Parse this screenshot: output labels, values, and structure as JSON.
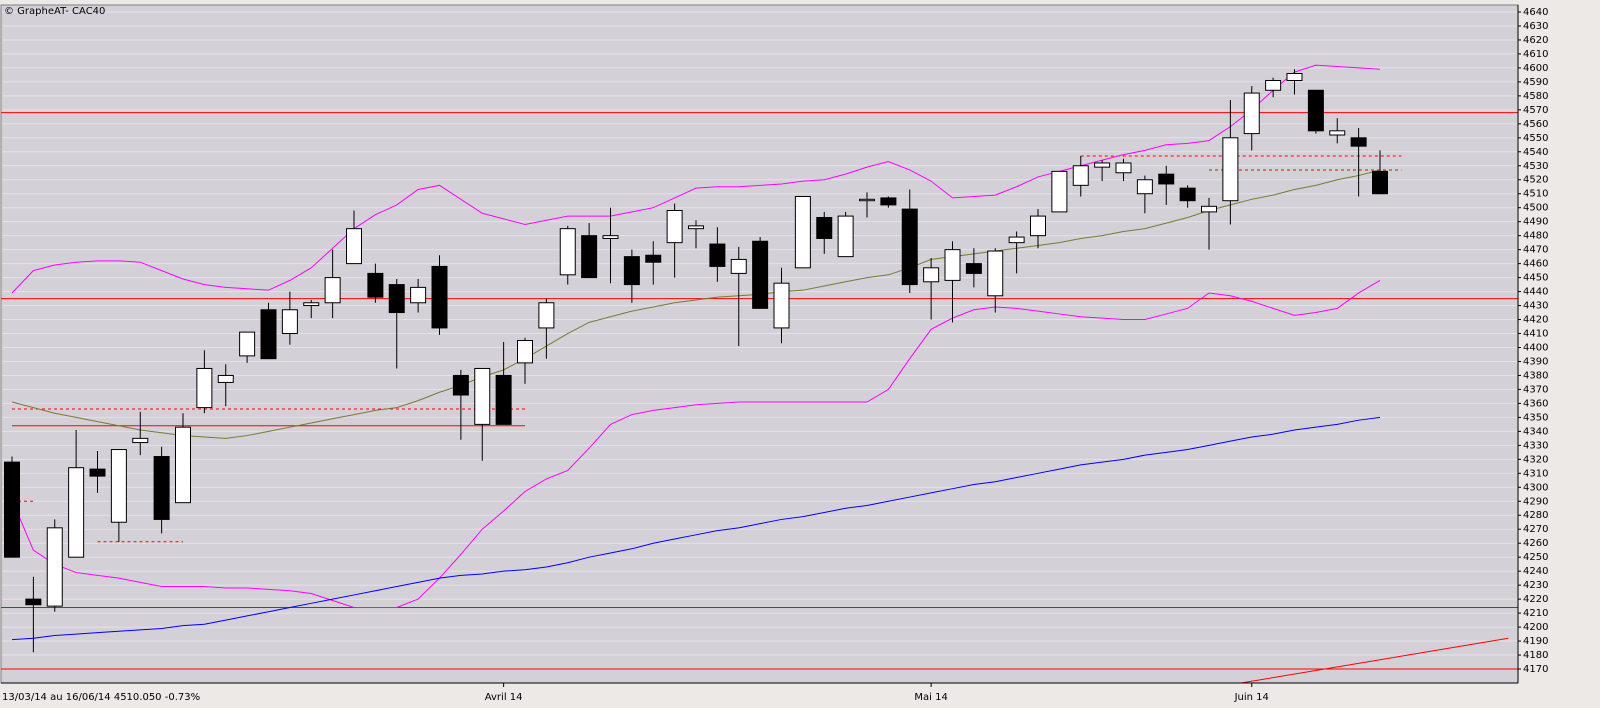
{
  "chart_data": {
    "type": "candlestick",
    "title": "© GrapheAT- CAC40",
    "footer": "13/03/14 au 16/06/14 4510.050 -0.73%",
    "categories": [
      null,
      null,
      null,
      null,
      null,
      null,
      null,
      null,
      null,
      null,
      null,
      null,
      null,
      null,
      null,
      null,
      null,
      null,
      null,
      null,
      null,
      null,
      null,
      "Avril 14",
      null,
      null,
      null,
      null,
      null,
      null,
      null,
      null,
      null,
      null,
      null,
      null,
      null,
      null,
      null,
      null,
      null,
      null,
      null,
      "Mai 14",
      null,
      null,
      null,
      null,
      null,
      null,
      null,
      null,
      null,
      null,
      null,
      null,
      null,
      null,
      "Juin 14",
      null,
      null,
      null,
      null,
      null,
      null
    ],
    "open": [
      4318,
      4220,
      4215,
      4250,
      4313,
      4275,
      4332,
      4322,
      4289,
      4357,
      4375,
      4394,
      4427,
      4410,
      4430,
      4432,
      4460,
      4453,
      4445,
      4432,
      4458,
      4380,
      4345,
      4380,
      4389,
      4414,
      4452,
      4480,
      4478,
      4465,
      4466,
      4475,
      4485,
      4474,
      4453,
      4476,
      4414,
      4457,
      4493,
      4465,
      4505,
      4507,
      4499,
      4447,
      4448,
      4460,
      4437,
      4475,
      4480,
      4497,
      4516,
      4529,
      4525,
      4510,
      4524,
      4514,
      4497,
      4505,
      4553,
      4584,
      4591,
      4584,
      4552,
      4550,
      4526
    ],
    "high": [
      4322,
      4236,
      4277,
      4341,
      4326,
      4327,
      4354,
      4329,
      4353,
      4398,
      4388,
      4411,
      4432,
      4440,
      4434,
      4470,
      4498,
      4460,
      4449,
      4449,
      4466,
      4384,
      4385,
      4404,
      4407,
      4435,
      4487,
      4489,
      4500,
      4470,
      4476,
      4503,
      4491,
      4486,
      4472,
      4479,
      4457,
      4508,
      4497,
      4497,
      4511,
      4508,
      4513,
      4464,
      4476,
      4471,
      4471,
      4483,
      4499,
      4526,
      4537,
      4534,
      4535,
      4523,
      4530,
      4516,
      4507,
      4577,
      4587,
      4593,
      4599,
      4584,
      4564,
      4557,
      4541
    ],
    "low": [
      4250,
      4182,
      4211,
      4250,
      4296,
      4261,
      4323,
      4267,
      4289,
      4353,
      4358,
      4389,
      4392,
      4402,
      4421,
      4421,
      4460,
      4432,
      4385,
      4425,
      4409,
      4334,
      4319,
      4345,
      4374,
      4392,
      4445,
      4450,
      4446,
      4432,
      4445,
      4450,
      4471,
      4447,
      4401,
      4428,
      4403,
      4457,
      4467,
      4465,
      4493,
      4500,
      4439,
      4420,
      4418,
      4443,
      4425,
      4453,
      4471,
      4497,
      4508,
      4519,
      4519,
      4496,
      4502,
      4500,
      4470,
      4488,
      4541,
      4579,
      4581,
      4553,
      4546,
      4508,
      4510
    ],
    "close": [
      4250,
      4216,
      4271,
      4314,
      4308,
      4327,
      4335,
      4277,
      4343,
      4385,
      4380,
      4411,
      4392,
      4427,
      4432,
      4450,
      4485,
      4436,
      4425,
      4443,
      4414,
      4366,
      4385,
      4345,
      4405,
      4432,
      4485,
      4450,
      4480,
      4445,
      4461,
      4498,
      4487,
      4458,
      4463,
      4428,
      4446,
      4508,
      4478,
      4494,
      4506,
      4502,
      4445,
      4457,
      4470,
      4453,
      4469,
      4479,
      4494,
      4526,
      4530,
      4532,
      4532,
      4520,
      4517,
      4505,
      4501,
      4550,
      4582,
      4591,
      4596,
      4555,
      4555,
      4544,
      4510
    ],
    "up_color": "#ffffff",
    "down_color": "#000000",
    "overlays": [
      {
        "color": "#ff00ff",
        "values": [
          4439,
          4455,
          4459,
          4461,
          4462,
          4462,
          4461,
          4455,
          4449,
          4445,
          4443,
          4442,
          4441,
          4448,
          4457,
          4471,
          4485,
          4495,
          4502,
          4513,
          4516,
          4506,
          4496,
          4492,
          4488,
          4491,
          4494,
          4494,
          4494,
          4497,
          4500,
          4507,
          4514,
          4515,
          4515,
          4516,
          4517,
          4519,
          4520,
          4524,
          4529,
          4533,
          4527,
          4519,
          4507,
          4508,
          4509,
          4515,
          4522,
          4526,
          4530,
          4534,
          4538,
          4541,
          4545,
          4546,
          4548,
          4558,
          4570,
          4584,
          4597,
          4602,
          4601,
          4600,
          4599
        ]
      },
      {
        "color": "#ff00ff",
        "values": [
          4291,
          4255,
          4245,
          4239,
          4237,
          4235,
          4232,
          4229,
          4229,
          4229,
          4228,
          4228,
          4227,
          4226,
          4224,
          4219,
          4214,
          4214,
          4214,
          4220,
          4235,
          4252,
          4270,
          4283,
          4297,
          4306,
          4312,
          4328,
          4345,
          4352,
          4355,
          4357,
          4359,
          4360,
          4361,
          4361,
          4361,
          4361,
          4361,
          4361,
          4361,
          4370,
          4392,
          4413,
          4421,
          4427,
          4429,
          4428,
          4426,
          4424,
          4422,
          4421,
          4420,
          4420,
          4424,
          4428,
          4439,
          4437,
          4433,
          4428,
          4423,
          4425,
          4428,
          4439,
          4448
        ]
      },
      {
        "color": "#7a7a30",
        "values": [
          4361,
          4357,
          4353,
          4350,
          4347,
          4344,
          4341,
          4339,
          4337,
          4336,
          4335,
          4337,
          4340,
          4343,
          4346,
          4349,
          4352,
          4355,
          4357,
          4362,
          4368,
          4373,
          4379,
          4384,
          4392,
          4401,
          4410,
          4418,
          4422,
          4426,
          4429,
          4432,
          4434,
          4436,
          4437,
          4438,
          4440,
          4441,
          4444,
          4447,
          4450,
          4452,
          4457,
          4463,
          4465,
          4467,
          4469,
          4471,
          4473,
          4475,
          4478,
          4480,
          4483,
          4485,
          4489,
          4493,
          4498,
          4502,
          4506,
          4509,
          4513,
          4516,
          4520,
          4523,
          4527
        ]
      },
      {
        "color": "#0000ff",
        "values": [
          4191,
          4192,
          4194,
          4195,
          4196,
          4197,
          4198,
          4199,
          4201,
          4202,
          4205,
          4208,
          4211,
          4214,
          4217,
          4220,
          4223,
          4226,
          4229,
          4232,
          4235,
          4237,
          4238,
          4240,
          4241,
          4243,
          4246,
          4250,
          4253,
          4256,
          4260,
          4263,
          4266,
          4269,
          4271,
          4274,
          4277,
          4279,
          4282,
          4285,
          4287,
          4290,
          4293,
          4296,
          4299,
          4302,
          4304,
          4307,
          4310,
          4313,
          4316,
          4318,
          4320,
          4323,
          4325,
          4327,
          4330,
          4333,
          4336,
          4338,
          4341,
          4343,
          4345,
          4348,
          4350
        ]
      }
    ],
    "levels": [
      {
        "value": 4568,
        "color": "#ff0000"
      },
      {
        "value": 4435,
        "color": "#ff0000"
      },
      {
        "value": 4214,
        "color": "#ff0000"
      },
      {
        "value": 4170,
        "color": "#ff0000"
      },
      {
        "value": 4344,
        "color": "#ff0000",
        "from": 0,
        "to": 24
      },
      {
        "value": 4356,
        "color": "#ff0000",
        "from": 0,
        "to": 24,
        "style": "dashed"
      },
      {
        "value": 4290,
        "color": "#ff0000",
        "from": 0,
        "to": 1,
        "style": "dashed"
      },
      {
        "value": 4261,
        "color": "#ff0000",
        "from": 4,
        "to": 8,
        "style": "dashed"
      },
      {
        "value": 4537,
        "color": "#ff0000",
        "from": 50,
        "to": 65,
        "style": "dashed"
      },
      {
        "value": 4527,
        "color": "#ff0000",
        "from": 56,
        "to": 65,
        "style": "dashed"
      }
    ],
    "trendline": {
      "color": "#ff0000",
      "x": [
        57.5,
        70
      ],
      "y": [
        4160,
        4192
      ]
    },
    "ylim": [
      4160,
      4645
    ],
    "yticks": [
      4170,
      4180,
      4190,
      4200,
      4210,
      4220,
      4230,
      4240,
      4250,
      4260,
      4270,
      4280,
      4290,
      4300,
      4310,
      4320,
      4330,
      4340,
      4350,
      4360,
      4370,
      4380,
      4390,
      4400,
      4410,
      4420,
      4430,
      4440,
      4450,
      4460,
      4470,
      4480,
      4490,
      4500,
      4510,
      4520,
      4530,
      4540,
      4550,
      4560,
      4570,
      4580,
      4590,
      4600,
      4610,
      4620,
      4630,
      4640
    ],
    "grid": true
  }
}
